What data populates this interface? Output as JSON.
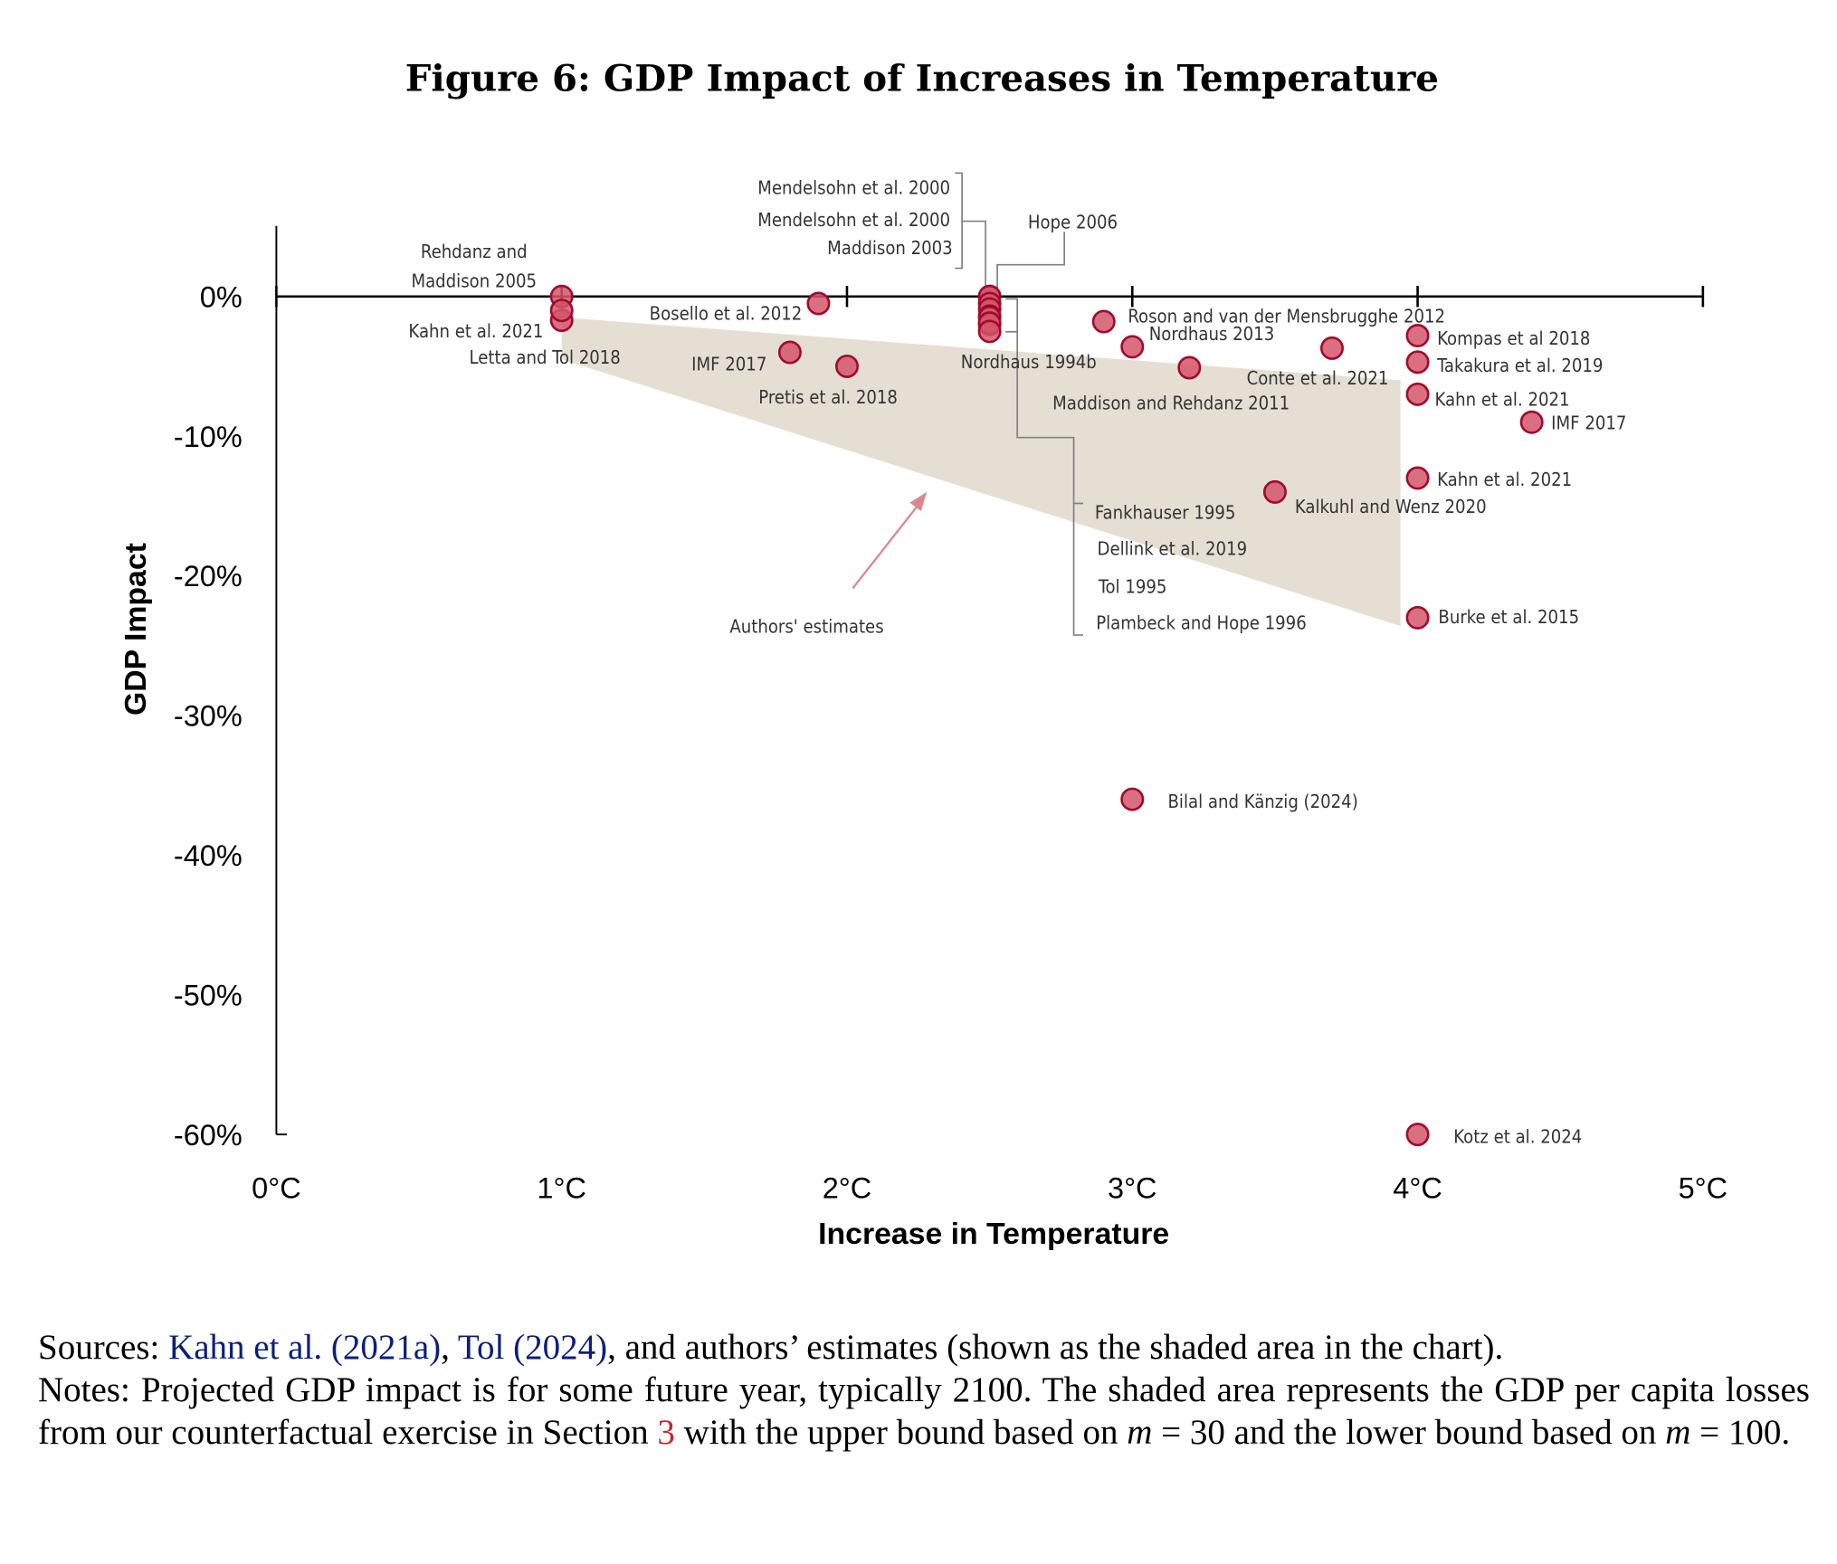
{
  "title": "Figure 6: GDP Impact of Increases in Temperature",
  "chart_data": {
    "type": "scatter",
    "title": "Figure 6: GDP Impact of Increases in Temperature",
    "xlabel": "Increase in Temperature",
    "ylabel": "GDP Impact",
    "xlim": [
      0,
      5
    ],
    "ylim": [
      -60,
      0
    ],
    "x_ticks": [
      "0°C",
      "1°C",
      "2°C",
      "3°C",
      "4°C",
      "5°C"
    ],
    "y_ticks": [
      "0%",
      "-10%",
      "-20%",
      "-30%",
      "-40%",
      "-50%",
      "-60%"
    ],
    "grid": false,
    "colors": {
      "point_fill": "#d4566b",
      "point_stroke": "#a10a2b",
      "shaded_area": "#e0d9cb",
      "arrow": "#d9898c",
      "leader": "#808080"
    },
    "points": [
      {
        "label": "Rehdanz and Maddison 2005",
        "x": 1,
        "y": 0
      },
      {
        "label": "Kahn et al. 2021",
        "x": 1,
        "y": -1.7
      },
      {
        "label": "Letta and Tol 2018",
        "x": 1,
        "y": -1
      },
      {
        "label": "Bosello et al. 2012",
        "x": 1.9,
        "y": -0.5
      },
      {
        "label": "IMF 2017",
        "x": 1.8,
        "y": -4
      },
      {
        "label": "Pretis et al. 2018",
        "x": 2,
        "y": -5
      },
      {
        "label": "Mendelsohn et al. 2000",
        "x": 2.5,
        "y": 0
      },
      {
        "label": "Mendelsohn et al. 2000",
        "x": 2.5,
        "y": 0
      },
      {
        "label": "Maddison 2003",
        "x": 2.5,
        "y": -0.5
      },
      {
        "label": "Hope 2006",
        "x": 2.5,
        "y": -0.9
      },
      {
        "label": "Nordhaus 1994b",
        "x": 2.5,
        "y": -1.4
      },
      {
        "label": "Fankhauser 1995",
        "x": 2.5,
        "y": -1.5
      },
      {
        "label": "Dellink et al. 2019",
        "x": 2.5,
        "y": -2
      },
      {
        "label": "Tol 1995",
        "x": 2.5,
        "y": -1.9
      },
      {
        "label": "Plambeck and Hope 1996",
        "x": 2.5,
        "y": -2.5
      },
      {
        "label": "Roson and van der Mensbrugghe 2012",
        "x": 2.9,
        "y": -1.8
      },
      {
        "label": "Nordhaus 2013",
        "x": 3,
        "y": -3.6
      },
      {
        "label": "Maddison and Rehdanz 2011",
        "x": 3.2,
        "y": -5.1
      },
      {
        "label": "Conte et al. 2021",
        "x": 3.7,
        "y": -3.7
      },
      {
        "label": "Kompas et al 2018",
        "x": 4,
        "y": -2.8
      },
      {
        "label": "Takakura et al. 2019",
        "x": 4,
        "y": -4.7
      },
      {
        "label": "Kahn et al. 2021",
        "x": 4,
        "y": -7
      },
      {
        "label": "IMF 2017",
        "x": 4.4,
        "y": -9
      },
      {
        "label": "Kahn et al. 2021",
        "x": 4,
        "y": -13
      },
      {
        "label": "Kalkuhl and Wenz 2020",
        "x": 3.5,
        "y": -14
      },
      {
        "label": "Burke et al. 2015",
        "x": 4,
        "y": -23
      },
      {
        "label": "Bilal and Känzig (2024)",
        "x": 3,
        "y": -36
      },
      {
        "label": "Kotz et al. 2024",
        "x": 4,
        "y": -60
      }
    ],
    "shaded_area": {
      "label": "Authors' estimates",
      "x": [
        1,
        3.94
      ],
      "upper_bound": [
        -1.5,
        -6
      ],
      "lower_bound": [
        -4.5,
        -23.6
      ]
    },
    "annotation": {
      "text": "Authors' estimates",
      "arrow_from": [
        2.02,
        -20.9
      ],
      "arrow_to": [
        2.28,
        -14
      ]
    }
  },
  "caption": {
    "sources_prefix": "Sources: ",
    "source_link_1": "Kahn et al. (2021a)",
    "sep": ", ",
    "source_link_2": "Tol (2024)",
    "sources_suffix": ", and authors’ estimates (shown as the shaded area in the chart).",
    "notes_1": "Notes: Projected GDP impact is for some future year, typically 2100. The shaded area represents the GDP per capita losses from our counterfactual exercise in Section ",
    "section_ref": "3",
    "notes_2": " with the upper bound based on ",
    "m1": "m",
    "eq1": " = 30 and the lower bound based on ",
    "m2": "m",
    "eq2": " = 100."
  }
}
